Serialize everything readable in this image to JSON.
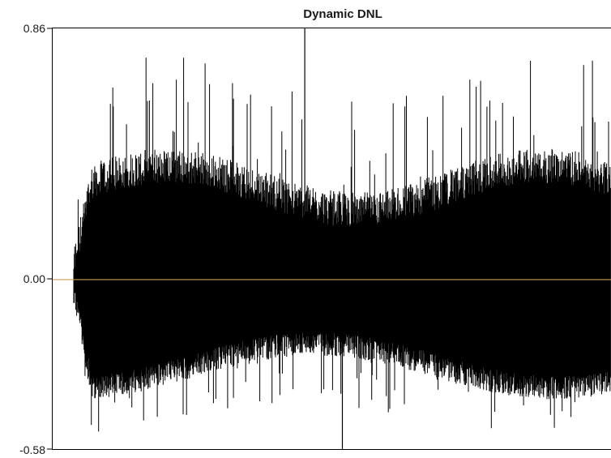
{
  "chart_data": {
    "type": "line",
    "title": "Dynamic DNL",
    "xlabel": "",
    "ylabel": "",
    "ylim": [
      -0.58,
      0.86
    ],
    "y_ticks": [
      {
        "value": 0.86,
        "label": "0.86"
      },
      {
        "value": 0.0,
        "label": "0.00"
      },
      {
        "value": -0.58,
        "label": "-0.58"
      }
    ],
    "grid": false,
    "series": [
      {
        "style": "dense-vertical-spikes",
        "color": "#000000",
        "n_codes": 1100,
        "envelope": {
          "typical_upper": 0.3,
          "typical_lower": -0.3,
          "max_value": 0.86,
          "min_value": -0.58,
          "max_index_fraction": 0.43,
          "min_index_fraction": 0.5
        }
      }
    ],
    "zero_line": {
      "value": 0.0,
      "color": "#c8a050"
    },
    "colors": {
      "axis": "#000000",
      "data": "#000000",
      "zero_line": "#c8a050",
      "background": "#ffffff"
    }
  }
}
